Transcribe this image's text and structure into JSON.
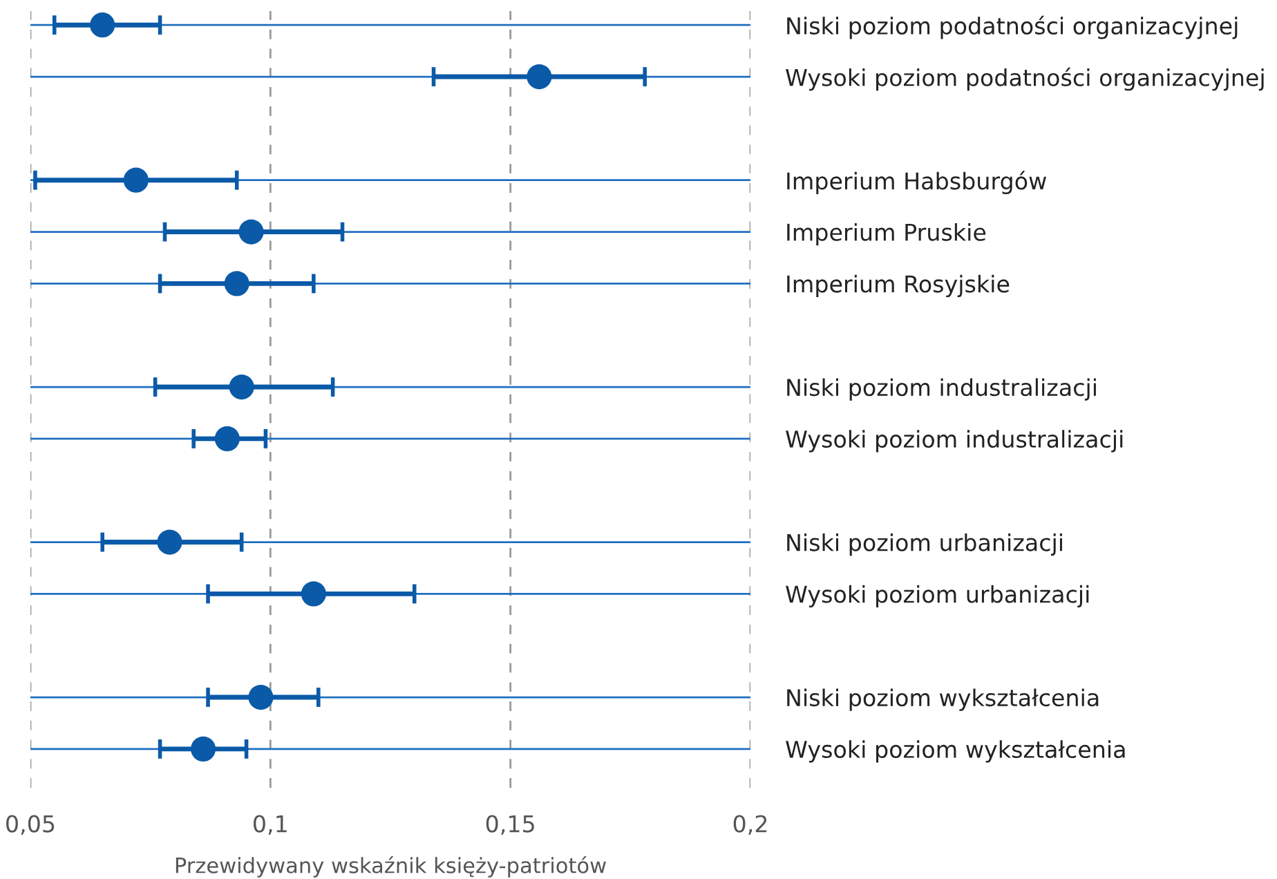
{
  "chart_data": {
    "type": "scatter",
    "orientation": "horizontal",
    "xlabel": "Przewidywany wskaźnik księży-patriotów",
    "categories": [
      "Niski poziom podatności organizacyjnej",
      "Wysoki poziom podatności organizacyjnej",
      null,
      "Imperium Habsburgów",
      "Imperium Pruskie",
      "Imperium Rosyjskie",
      null,
      "Niski poziom industralizacji",
      "Wysoki poziom industralizacji",
      null,
      "Niski poziom urbanizacji",
      "Wysoki poziom urbanizacji",
      null,
      "Niski poziom wykształcenia",
      "Wysoki poziom wykształcenia"
    ],
    "series": [
      {
        "color": "#0b5aa8",
        "values": [
          0.065,
          0.156,
          null,
          0.072,
          0.096,
          0.093,
          null,
          0.094,
          0.091,
          null,
          0.079,
          0.109,
          null,
          0.098,
          0.086
        ],
        "errors": [
          [
            0.055,
            0.077
          ],
          [
            0.134,
            0.178
          ],
          null,
          [
            0.051,
            0.093
          ],
          [
            0.078,
            0.115
          ],
          [
            0.077,
            0.109
          ],
          null,
          [
            0.076,
            0.113
          ],
          [
            0.084,
            0.099
          ],
          null,
          [
            0.065,
            0.094
          ],
          [
            0.087,
            0.13
          ],
          null,
          [
            0.087,
            0.11
          ],
          [
            0.077,
            0.095
          ]
        ]
      }
    ],
    "xlim": [
      0.05,
      0.2
    ],
    "xticks": [
      {
        "value": 0.05,
        "label": "0,05"
      },
      {
        "value": 0.1,
        "label": "0,1"
      },
      {
        "value": 0.15,
        "label": "0,15"
      },
      {
        "value": 0.2,
        "label": "0,2"
      }
    ],
    "grid": true,
    "marker": "circle"
  }
}
